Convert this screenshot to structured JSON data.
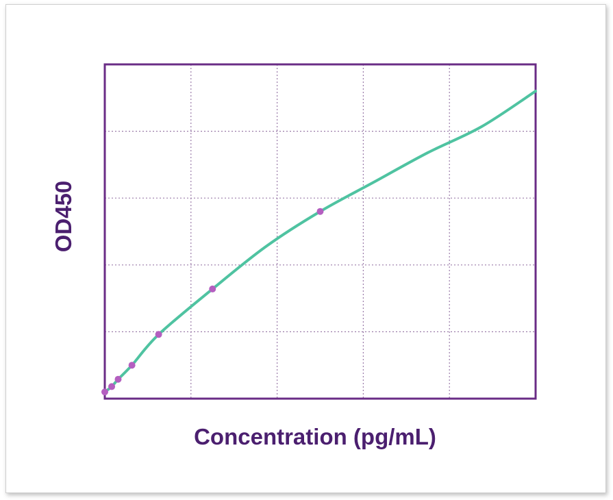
{
  "colors": {
    "frame": "#6a2c86",
    "grid": "#9a7aa8",
    "curve": "#4fc3a1",
    "points": "#b45fc0",
    "title_text": "#4b1f6f"
  },
  "chart_data": {
    "type": "scatter",
    "title": "",
    "xlabel": "Concentration (pg/mL)",
    "ylabel": "OD450",
    "xlim": [
      0,
      10
    ],
    "ylim": [
      0,
      5
    ],
    "grid": true,
    "x_gridlines": 5,
    "y_gridlines": 5,
    "series": [
      {
        "type": "scatter",
        "x": [
          0.0,
          0.16,
          0.31,
          0.63,
          1.25,
          2.5,
          5.0
        ],
        "y": [
          0.1,
          0.18,
          0.29,
          0.5,
          0.96,
          1.64,
          2.8
        ]
      },
      {
        "type": "line",
        "x": [
          0.0,
          0.16,
          0.31,
          0.63,
          1.25,
          2.5,
          3.75,
          5.0,
          6.25,
          7.5,
          8.75,
          10.0
        ],
        "y": [
          0.1,
          0.18,
          0.29,
          0.5,
          0.96,
          1.64,
          2.28,
          2.8,
          3.24,
          3.68,
          4.07,
          4.6
        ]
      }
    ]
  }
}
